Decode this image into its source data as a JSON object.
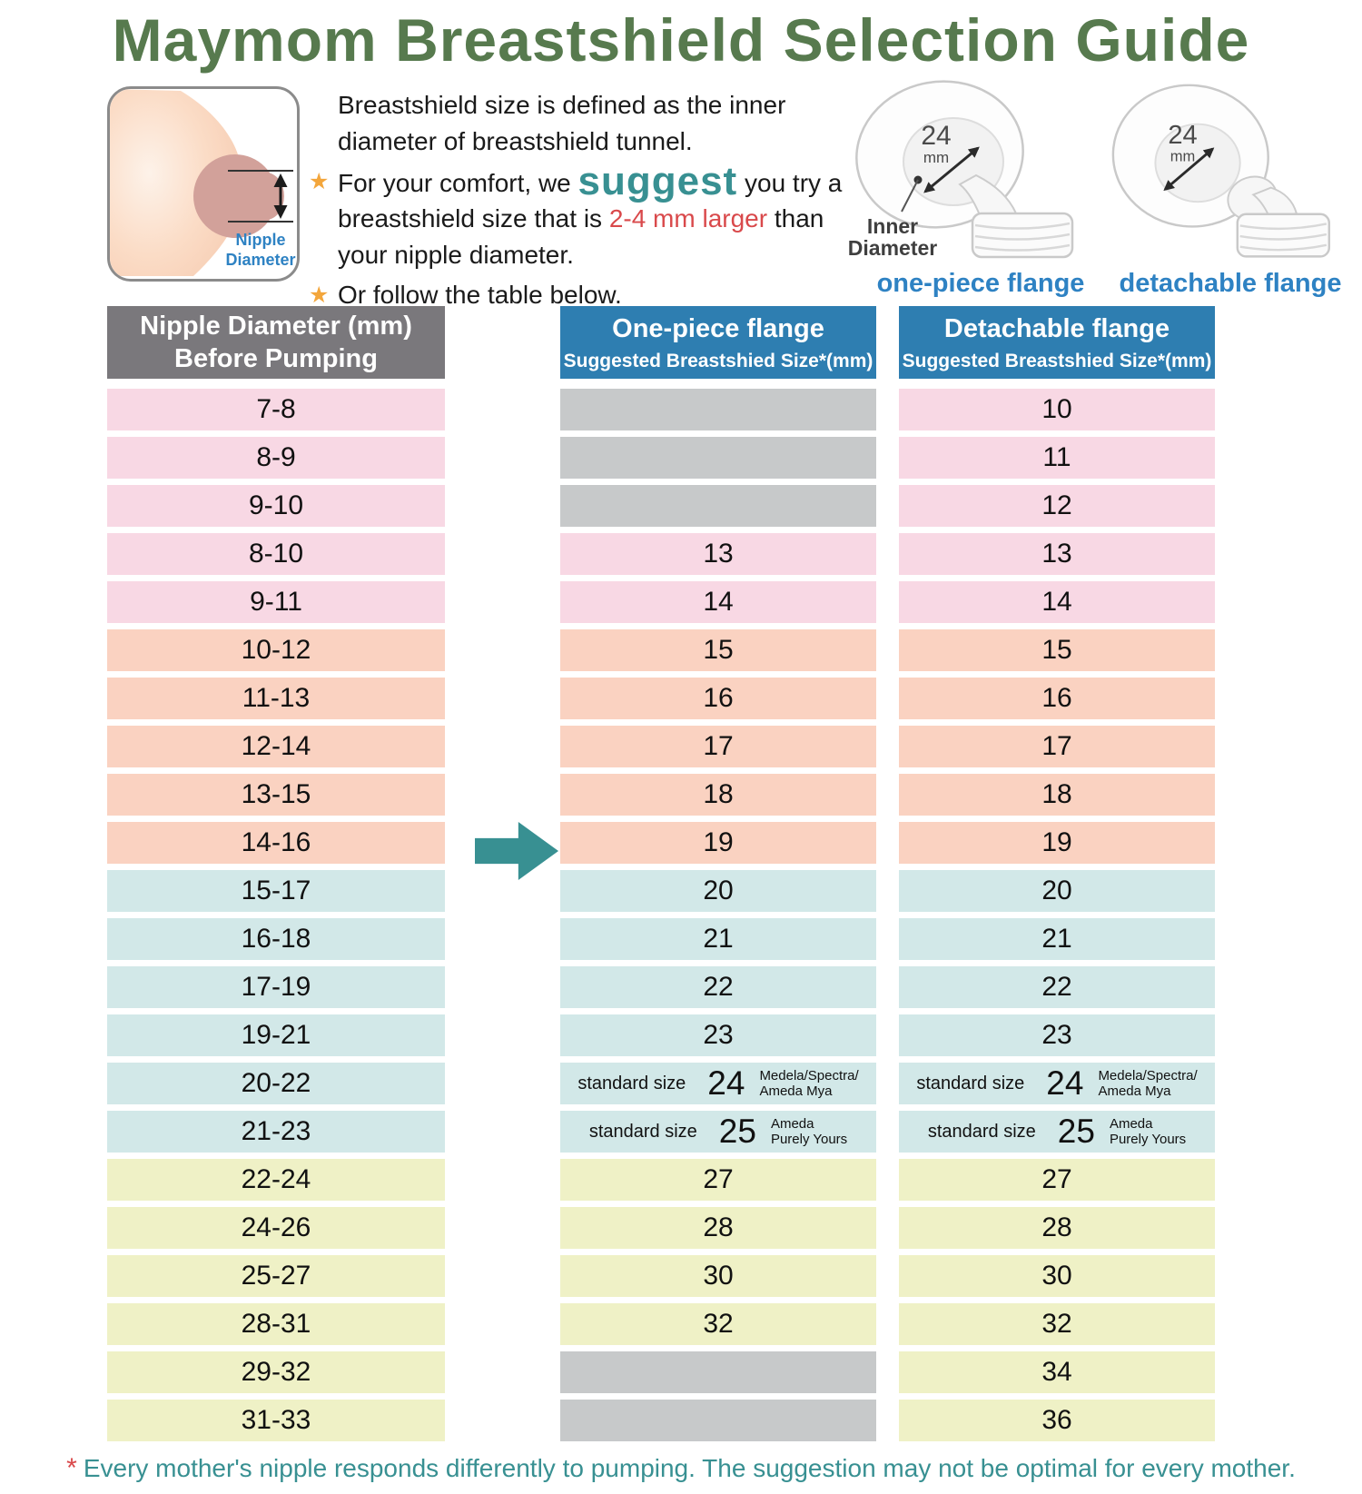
{
  "title": "Maymom Breastshield Selection Guide",
  "intro": {
    "star": "★",
    "sentence": "Breastshield size is defined as the inner diameter of breastshield tunnel.",
    "bullet1": {
      "pre": "For your comfort, we ",
      "highlight": "suggest",
      "mid": " you try a breastshield size that is ",
      "emphasis": "2-4 mm larger",
      "post": " than your nipple diameter."
    },
    "bullet2": "Or follow the table below."
  },
  "diagram": {
    "nipple_label_line1": "Nipple",
    "nipple_label_line2": "Diameter"
  },
  "flanges": {
    "size_value": "24",
    "size_unit": "mm",
    "inner_diameter_line1": "Inner",
    "inner_diameter_line2": "Diameter",
    "left_caption": "one-piece flange",
    "right_caption": "detachable flange"
  },
  "table": {
    "headers": {
      "col1_line1": "Nipple Diameter (mm)",
      "col1_line2": "Before Pumping",
      "col2_line1": "One-piece flange",
      "col2_line2": "Suggested Breastshied Size*(mm)",
      "col3_line1": "Detachable flange",
      "col3_line2": "Suggested Breastshied Size*(mm)"
    },
    "standard_prefix": "standard size",
    "rows": [
      {
        "nipple": "7-8",
        "group": "pink",
        "one_piece": {
          "type": "empty"
        },
        "detachable": {
          "type": "value",
          "value": "10"
        }
      },
      {
        "nipple": "8-9",
        "group": "pink",
        "one_piece": {
          "type": "empty"
        },
        "detachable": {
          "type": "value",
          "value": "11"
        }
      },
      {
        "nipple": "9-10",
        "group": "pink",
        "one_piece": {
          "type": "empty"
        },
        "detachable": {
          "type": "value",
          "value": "12"
        }
      },
      {
        "nipple": "8-10",
        "group": "pink",
        "one_piece": {
          "type": "value",
          "value": "13"
        },
        "detachable": {
          "type": "value",
          "value": "13"
        }
      },
      {
        "nipple": "9-11",
        "group": "pink",
        "one_piece": {
          "type": "value",
          "value": "14"
        },
        "detachable": {
          "type": "value",
          "value": "14"
        }
      },
      {
        "nipple": "10-12",
        "group": "salmon",
        "one_piece": {
          "type": "value",
          "value": "15"
        },
        "detachable": {
          "type": "value",
          "value": "15"
        }
      },
      {
        "nipple": "11-13",
        "group": "salmon",
        "one_piece": {
          "type": "value",
          "value": "16"
        },
        "detachable": {
          "type": "value",
          "value": "16"
        }
      },
      {
        "nipple": "12-14",
        "group": "salmon",
        "one_piece": {
          "type": "value",
          "value": "17"
        },
        "detachable": {
          "type": "value",
          "value": "17"
        }
      },
      {
        "nipple": "13-15",
        "group": "salmon",
        "one_piece": {
          "type": "value",
          "value": "18"
        },
        "detachable": {
          "type": "value",
          "value": "18"
        }
      },
      {
        "nipple": "14-16",
        "group": "salmon",
        "one_piece": {
          "type": "value",
          "value": "19"
        },
        "detachable": {
          "type": "value",
          "value": "19"
        }
      },
      {
        "nipple": "15-17",
        "group": "cyan",
        "one_piece": {
          "type": "value",
          "value": "20"
        },
        "detachable": {
          "type": "value",
          "value": "20"
        }
      },
      {
        "nipple": "16-18",
        "group": "cyan",
        "one_piece": {
          "type": "value",
          "value": "21"
        },
        "detachable": {
          "type": "value",
          "value": "21"
        }
      },
      {
        "nipple": "17-19",
        "group": "cyan",
        "one_piece": {
          "type": "value",
          "value": "22"
        },
        "detachable": {
          "type": "value",
          "value": "22"
        }
      },
      {
        "nipple": "19-21",
        "group": "cyan",
        "one_piece": {
          "type": "value",
          "value": "23"
        },
        "detachable": {
          "type": "value",
          "value": "23"
        }
      },
      {
        "nipple": "20-22",
        "group": "cyan",
        "one_piece": {
          "type": "standard",
          "value": "24",
          "note": [
            "Medela/Spectra/",
            "Ameda Mya"
          ]
        },
        "detachable": {
          "type": "standard",
          "value": "24",
          "note": [
            "Medela/Spectra/",
            "Ameda Mya"
          ]
        }
      },
      {
        "nipple": "21-23",
        "group": "cyan",
        "one_piece": {
          "type": "standard",
          "value": "25",
          "note": [
            "Ameda",
            "Purely Yours"
          ]
        },
        "detachable": {
          "type": "standard",
          "value": "25",
          "note": [
            "Ameda",
            "Purely Yours"
          ]
        }
      },
      {
        "nipple": "22-24",
        "group": "yellow",
        "one_piece": {
          "type": "value",
          "value": "27"
        },
        "detachable": {
          "type": "value",
          "value": "27"
        }
      },
      {
        "nipple": "24-26",
        "group": "yellow",
        "one_piece": {
          "type": "value",
          "value": "28"
        },
        "detachable": {
          "type": "value",
          "value": "28"
        }
      },
      {
        "nipple": "25-27",
        "group": "yellow",
        "one_piece": {
          "type": "value",
          "value": "30"
        },
        "detachable": {
          "type": "value",
          "value": "30"
        }
      },
      {
        "nipple": "28-31",
        "group": "yellow",
        "one_piece": {
          "type": "value",
          "value": "32"
        },
        "detachable": {
          "type": "value",
          "value": "32"
        }
      },
      {
        "nipple": "29-32",
        "group": "yellow",
        "one_piece": {
          "type": "empty"
        },
        "detachable": {
          "type": "value",
          "value": "34"
        }
      },
      {
        "nipple": "31-33",
        "group": "yellow",
        "one_piece": {
          "type": "empty"
        },
        "detachable": {
          "type": "value",
          "value": "36"
        }
      }
    ]
  },
  "footnote": {
    "asterisk": "*",
    "text": "Every mother's nipple responds differently to pumping. The suggestion may not be optimal for every mother."
  },
  "colors": {
    "title_green": "#577a4e",
    "header_gray": "#7a787c",
    "header_blue": "#2e7eb1",
    "pink": "#f8d8e4",
    "salmon": "#fad2c1",
    "cyan": "#d2e8e8",
    "yellow": "#eff1c6",
    "empty_gray": "#c7c9ca",
    "teal": "#389092",
    "red": "#d9494b",
    "label_blue": "#2e82c3",
    "star_orange": "#f3a63c"
  }
}
